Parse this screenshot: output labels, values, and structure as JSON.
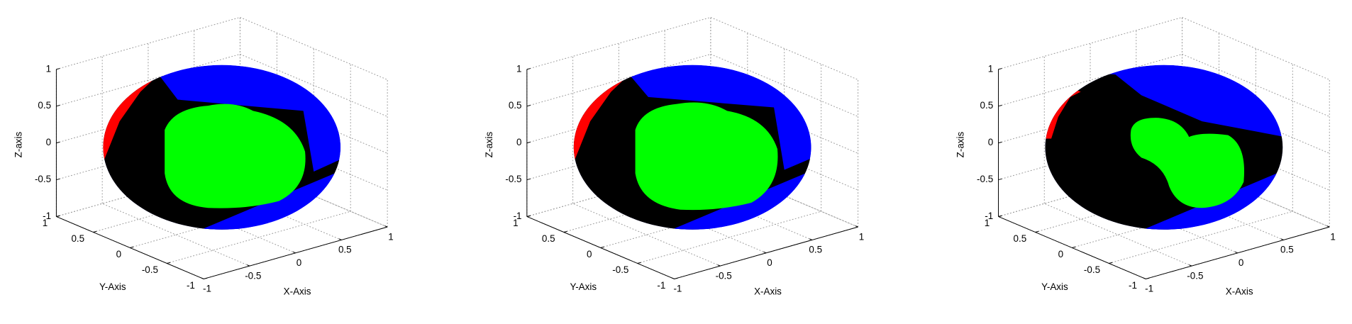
{
  "chart_data": [
    {
      "type": "surface3d",
      "xlabel": "X-Axis",
      "ylabel": "Y-Axis",
      "zlabel": "Z-axis",
      "xlim": [
        -1,
        1
      ],
      "ylim": [
        -1,
        1
      ],
      "zlim": [
        -1,
        1
      ],
      "xticks": [
        -1,
        -0.5,
        0,
        0.5,
        1
      ],
      "yticks": [
        -1,
        -0.5,
        0,
        0.5,
        1
      ],
      "zticks": [
        -1,
        -0.5,
        0,
        0.5,
        1
      ],
      "grid": true
    },
    {
      "type": "surface3d",
      "xlabel": "X-Axis",
      "ylabel": "Y-Axis",
      "zlabel": "Z-axis",
      "xlim": [
        -1,
        1
      ],
      "ylim": [
        -1,
        1
      ],
      "zlim": [
        -1,
        1
      ],
      "xticks": [
        -1,
        -0.5,
        0,
        0.5,
        1
      ],
      "yticks": [
        -1,
        -0.5,
        0,
        0.5,
        1
      ],
      "zticks": [
        -1,
        -0.5,
        0,
        0.5,
        1
      ],
      "grid": true
    },
    {
      "type": "surface3d",
      "xlabel": "X-Axis",
      "ylabel": "Y-Axis",
      "zlabel": "Z-axis",
      "xlim": [
        -1,
        1
      ],
      "ylim": [
        -1,
        1
      ],
      "zlim": [
        -1,
        1
      ],
      "xticks": [
        -1,
        -0.5,
        0,
        0.5,
        1
      ],
      "yticks": [
        -1,
        -0.5,
        0,
        0.5,
        1
      ],
      "zticks": [
        -1,
        -0.5,
        0,
        0.5,
        1
      ],
      "grid": true
    }
  ]
}
